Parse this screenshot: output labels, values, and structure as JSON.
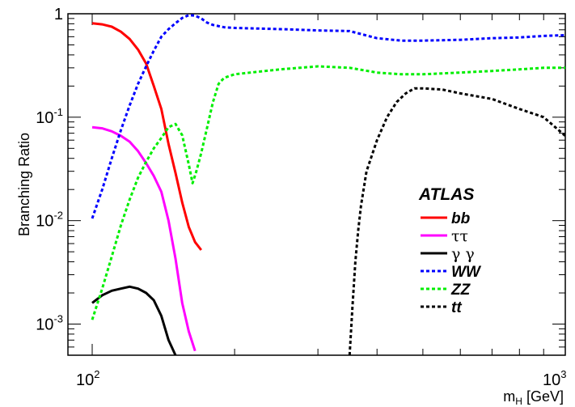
{
  "chart_data": {
    "type": "line",
    "title": "",
    "xlabel": "m",
    "xlabel_sub": "H",
    "xlabel_unit": " [GeV]",
    "ylabel": "Branching Ratio",
    "xscale": "log",
    "yscale": "log",
    "xlim": [
      100,
      1000
    ],
    "ylim": [
      0.0005,
      1
    ],
    "x_tick_labels": [
      {
        "value": 100,
        "base": "10",
        "exp": "2"
      },
      {
        "value": 1000,
        "base": "10",
        "exp": "3"
      }
    ],
    "y_tick_labels": [
      {
        "value": 1,
        "base": "1",
        "exp": ""
      },
      {
        "value": 0.1,
        "base": "10",
        "exp": "-1"
      },
      {
        "value": 0.01,
        "base": "10",
        "exp": "-2"
      },
      {
        "value": 0.001,
        "base": "10",
        "exp": "-3"
      }
    ],
    "annotation": "ATLAS",
    "legend_position": "bottom-right",
    "grid": false,
    "series": [
      {
        "name": "bb",
        "color": "#ff0000",
        "dash": "solid",
        "style": "bold-italic",
        "points": [
          [
            100,
            0.81
          ],
          [
            105,
            0.79
          ],
          [
            110,
            0.75
          ],
          [
            115,
            0.67
          ],
          [
            120,
            0.57
          ],
          [
            125,
            0.45
          ],
          [
            130,
            0.33
          ],
          [
            135,
            0.2
          ],
          [
            140,
            0.12
          ],
          [
            145,
            0.055
          ],
          [
            150,
            0.029
          ],
          [
            155,
            0.015
          ],
          [
            160,
            0.0087
          ],
          [
            165,
            0.0062
          ],
          [
            170,
            0.0052
          ]
        ]
      },
      {
        "name": "ττ",
        "color": "#ff00ff",
        "dash": "solid",
        "style": "plain",
        "points": [
          [
            100,
            0.08
          ],
          [
            105,
            0.078
          ],
          [
            110,
            0.073
          ],
          [
            115,
            0.066
          ],
          [
            120,
            0.058
          ],
          [
            125,
            0.047
          ],
          [
            130,
            0.036
          ],
          [
            135,
            0.027
          ],
          [
            140,
            0.019
          ],
          [
            145,
            0.01
          ],
          [
            150,
            0.0043
          ],
          [
            155,
            0.0016
          ],
          [
            160,
            0.00085
          ],
          [
            165,
            0.00055
          ]
        ]
      },
      {
        "name": "γ γ",
        "color": "#000000",
        "dash": "solid",
        "style": "plain",
        "points": [
          [
            100,
            0.0016
          ],
          [
            105,
            0.0019
          ],
          [
            110,
            0.0021
          ],
          [
            115,
            0.0022
          ],
          [
            120,
            0.0023
          ],
          [
            125,
            0.0022
          ],
          [
            130,
            0.002
          ],
          [
            135,
            0.0017
          ],
          [
            140,
            0.0012
          ],
          [
            145,
            0.0007
          ],
          [
            150,
            0.0005
          ]
        ]
      },
      {
        "name": "WW",
        "color": "#0000ff",
        "dash": "dotted",
        "style": "bold-italic",
        "points": [
          [
            100,
            0.0105
          ],
          [
            105,
            0.02
          ],
          [
            110,
            0.04
          ],
          [
            115,
            0.075
          ],
          [
            120,
            0.13
          ],
          [
            125,
            0.21
          ],
          [
            130,
            0.31
          ],
          [
            135,
            0.44
          ],
          [
            140,
            0.6
          ],
          [
            145,
            0.71
          ],
          [
            150,
            0.81
          ],
          [
            155,
            0.91
          ],
          [
            160,
            0.97
          ],
          [
            165,
            0.96
          ],
          [
            170,
            0.9
          ],
          [
            175,
            0.82
          ],
          [
            180,
            0.78
          ],
          [
            190,
            0.74
          ],
          [
            200,
            0.73
          ],
          [
            250,
            0.71
          ],
          [
            300,
            0.69
          ],
          [
            350,
            0.68
          ],
          [
            400,
            0.58
          ],
          [
            450,
            0.55
          ],
          [
            500,
            0.55
          ],
          [
            600,
            0.56
          ],
          [
            700,
            0.58
          ],
          [
            800,
            0.59
          ],
          [
            900,
            0.61
          ],
          [
            1000,
            0.62
          ]
        ]
      },
      {
        "name": "ZZ",
        "color": "#00ee00",
        "dash": "dotted",
        "style": "bold-italic",
        "points": [
          [
            100,
            0.0011
          ],
          [
            105,
            0.0022
          ],
          [
            110,
            0.0045
          ],
          [
            115,
            0.009
          ],
          [
            120,
            0.016
          ],
          [
            125,
            0.026
          ],
          [
            130,
            0.037
          ],
          [
            135,
            0.05
          ],
          [
            140,
            0.063
          ],
          [
            145,
            0.08
          ],
          [
            150,
            0.086
          ],
          [
            155,
            0.067
          ],
          [
            160,
            0.035
          ],
          [
            163,
            0.023
          ],
          [
            166,
            0.03
          ],
          [
            170,
            0.045
          ],
          [
            175,
            0.08
          ],
          [
            180,
            0.14
          ],
          [
            185,
            0.21
          ],
          [
            190,
            0.24
          ],
          [
            200,
            0.26
          ],
          [
            250,
            0.29
          ],
          [
            300,
            0.31
          ],
          [
            350,
            0.3
          ],
          [
            400,
            0.27
          ],
          [
            450,
            0.26
          ],
          [
            500,
            0.26
          ],
          [
            600,
            0.27
          ],
          [
            700,
            0.28
          ],
          [
            800,
            0.29
          ],
          [
            900,
            0.3
          ],
          [
            1000,
            0.3
          ]
        ]
      },
      {
        "name": "tt",
        "color": "#000000",
        "dash": "dotted",
        "style": "bold-italic",
        "points": [
          [
            350,
            0.0005
          ],
          [
            355,
            0.0015
          ],
          [
            360,
            0.004
          ],
          [
            365,
            0.008
          ],
          [
            370,
            0.014
          ],
          [
            380,
            0.03
          ],
          [
            400,
            0.06
          ],
          [
            420,
            0.1
          ],
          [
            440,
            0.14
          ],
          [
            460,
            0.17
          ],
          [
            480,
            0.19
          ],
          [
            500,
            0.19
          ],
          [
            550,
            0.185
          ],
          [
            600,
            0.17
          ],
          [
            700,
            0.15
          ],
          [
            800,
            0.12
          ],
          [
            900,
            0.1
          ],
          [
            1000,
            0.066
          ]
        ]
      }
    ]
  }
}
